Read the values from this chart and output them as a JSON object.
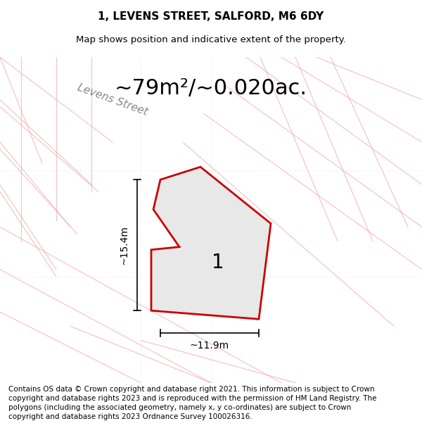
{
  "title_line1": "1, LEVENS STREET, SALFORD, M6 6DY",
  "title_line2": "Map shows position and indicative extent of the property.",
  "area_text": "~79m²/~0.020ac.",
  "street_label": "Levens Street",
  "dim_height": "~15.4m",
  "dim_width": "~11.9m",
  "plot_label": "1",
  "footer_text": "Contains OS data © Crown copyright and database right 2021. This information is subject to Crown copyright and database rights 2023 and is reproduced with the permission of HM Land Registry. The polygons (including the associated geometry, namely x, y co-ordinates) are subject to Crown copyright and database rights 2023 Ordnance Survey 100026316.",
  "bg_color": "#f0f0f0",
  "map_bg": "#f7f7f7",
  "plot_fill": "#e8e8e8",
  "plot_edge": "#cc0000",
  "grid_line_color": "#f0a0a0",
  "grid_line_color2": "#dddddd",
  "title_fontsize": 11,
  "subtitle_fontsize": 9.5,
  "area_fontsize": 22,
  "footer_fontsize": 7.5
}
